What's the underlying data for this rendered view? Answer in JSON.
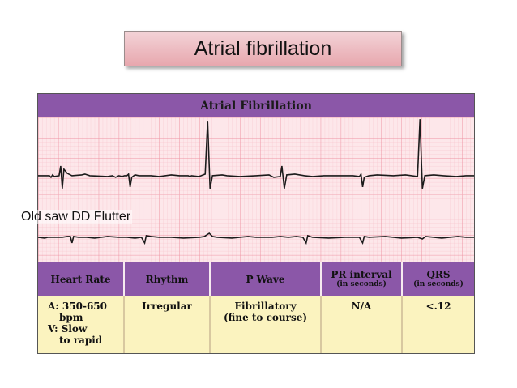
{
  "slide": {
    "title": "Atrial fibrillation",
    "overlay_text": "Old saw DD Flutter"
  },
  "figure": {
    "header": "Atrial Fibrillation",
    "table": {
      "headers": [
        {
          "main": "Heart Rate",
          "sub": ""
        },
        {
          "main": "Rhythm",
          "sub": ""
        },
        {
          "main": "P Wave",
          "sub": ""
        },
        {
          "main": "PR interval",
          "sub": "(in seconds)"
        },
        {
          "main": "QRS",
          "sub": "(in seconds)"
        }
      ],
      "heart_rate_a": "A: 350-650",
      "heart_rate_a2": "bpm",
      "heart_rate_v": "V: Slow",
      "heart_rate_v2": "to rapid",
      "rhythm": "Irregular",
      "p_wave_1": "Fibrillatory",
      "p_wave_2": "(fine to course)",
      "pr_interval": "N/A",
      "qrs": "<.12"
    }
  },
  "colors": {
    "header_purple": "#8b57a8",
    "grid_pink": "#fde7ea",
    "table_yellow": "#fbf3bf",
    "title_pink": "#e7a7ae"
  }
}
